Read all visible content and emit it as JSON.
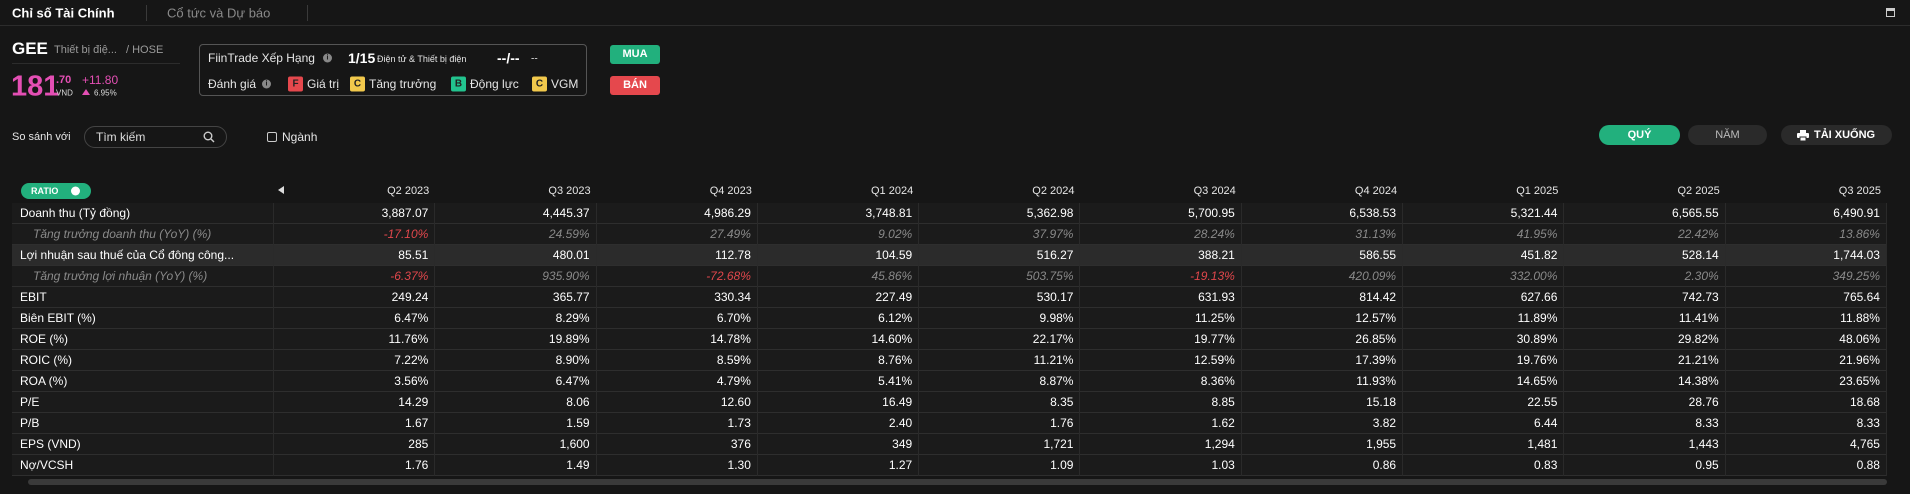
{
  "tabs": [
    "Chỉ số Tài Chính",
    "Cổ tức và Dự báo"
  ],
  "stock": {
    "ticker": "GEE",
    "industry": "Thiết bị điệ...",
    "exchange": "/ HOSE",
    "price_int": "181",
    "price_dec": ".70",
    "currency": "VND",
    "change": "+11.80",
    "change_pct": "6.95%"
  },
  "rating": {
    "label": "FiinTrade Xếp Hạng",
    "rank": "1/15",
    "sector": "Điện tử & Thiết bị điện",
    "rank2": "--/--",
    "rank2_suffix": "--",
    "eval_label": "Đánh giá",
    "scores": [
      {
        "grade": "F",
        "name": "Giá trị",
        "color": "#e5484d"
      },
      {
        "grade": "C",
        "name": "Tăng trưởng",
        "color": "#f2c94c"
      },
      {
        "grade": "B",
        "name": "Động lực",
        "color": "#22c38e"
      },
      {
        "grade": "C",
        "name": "VGM",
        "color": "#f2c94c"
      }
    ]
  },
  "actions": {
    "buy": "MUA",
    "sell": "BÁN"
  },
  "compare": {
    "label": "So sánh với",
    "search": "Tìm kiếm",
    "industry": "Ngành"
  },
  "periods": [
    "QUÝ",
    "NĂM"
  ],
  "download": "TẢI XUỐNG",
  "table": {
    "badge": "RATIO",
    "columns": [
      "Q2 2023",
      "Q3 2023",
      "Q4 2023",
      "Q1 2024",
      "Q2 2024",
      "Q3 2024",
      "Q4 2024",
      "Q1 2025",
      "Q2 2025",
      "Q3 2025"
    ],
    "rows": [
      {
        "label": "Doanh thu (Tỷ đồng)",
        "values": [
          "3,887.07",
          "4,445.37",
          "4,986.29",
          "3,748.81",
          "5,362.98",
          "5,700.95",
          "6,538.53",
          "5,321.44",
          "6,565.55",
          "6,490.91"
        ]
      },
      {
        "label": "Tăng trưởng doanh thu (YoY) (%)",
        "sub": true,
        "values": [
          "-17.10%",
          "24.59%",
          "27.49%",
          "9.02%",
          "37.97%",
          "28.24%",
          "31.13%",
          "41.95%",
          "22.42%",
          "13.86%"
        ]
      },
      {
        "label": "Lợi nhuận sau thuế của Cổ đông công...",
        "highlight": true,
        "values": [
          "85.51",
          "480.01",
          "112.78",
          "104.59",
          "516.27",
          "388.21",
          "586.55",
          "451.82",
          "528.14",
          "1,744.03"
        ]
      },
      {
        "label": "Tăng trưởng lợi nhuận (YoY) (%)",
        "sub": true,
        "values": [
          "-6.37%",
          "935.90%",
          "-72.68%",
          "45.86%",
          "503.75%",
          "-19.13%",
          "420.09%",
          "332.00%",
          "2.30%",
          "349.25%"
        ]
      },
      {
        "label": "EBIT",
        "values": [
          "249.24",
          "365.77",
          "330.34",
          "227.49",
          "530.17",
          "631.93",
          "814.42",
          "627.66",
          "742.73",
          "765.64"
        ]
      },
      {
        "label": "Biên EBIT (%)",
        "values": [
          "6.47%",
          "8.29%",
          "6.70%",
          "6.12%",
          "9.98%",
          "11.25%",
          "12.57%",
          "11.89%",
          "11.41%",
          "11.88%"
        ]
      },
      {
        "label": "ROE (%)",
        "values": [
          "11.76%",
          "19.89%",
          "14.78%",
          "14.60%",
          "22.17%",
          "19.77%",
          "26.85%",
          "30.89%",
          "29.82%",
          "48.06%"
        ]
      },
      {
        "label": "ROIC (%)",
        "values": [
          "7.22%",
          "8.90%",
          "8.59%",
          "8.76%",
          "11.21%",
          "12.59%",
          "17.39%",
          "19.76%",
          "21.21%",
          "21.96%"
        ]
      },
      {
        "label": "ROA (%)",
        "values": [
          "3.56%",
          "6.47%",
          "4.79%",
          "5.41%",
          "8.87%",
          "8.36%",
          "11.93%",
          "14.65%",
          "14.38%",
          "23.65%"
        ]
      },
      {
        "label": "P/E",
        "values": [
          "14.29",
          "8.06",
          "12.60",
          "16.49",
          "8.35",
          "8.85",
          "15.18",
          "22.55",
          "28.76",
          "18.68"
        ]
      },
      {
        "label": "P/B",
        "values": [
          "1.67",
          "1.59",
          "1.73",
          "2.40",
          "1.76",
          "1.62",
          "3.82",
          "6.44",
          "8.33",
          "8.33"
        ]
      },
      {
        "label": "EPS (VND)",
        "values": [
          "285",
          "1,600",
          "376",
          "349",
          "1,721",
          "1,294",
          "1,955",
          "1,481",
          "1,443",
          "4,765"
        ]
      },
      {
        "label": "Nợ/VCSH",
        "values": [
          "1.76",
          "1.49",
          "1.30",
          "1.27",
          "1.09",
          "1.03",
          "0.86",
          "0.83",
          "0.95",
          "0.88"
        ]
      }
    ]
  }
}
